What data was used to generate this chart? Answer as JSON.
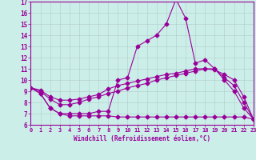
{
  "xlabel": "Windchill (Refroidissement éolien,°C)",
  "bg_color": "#cceee8",
  "line_color": "#990099",
  "grid_color": "#b0cccc",
  "axis_color": "#990099",
  "xlim": [
    0,
    23
  ],
  "ylim": [
    6,
    17
  ],
  "xticks": [
    0,
    1,
    2,
    3,
    4,
    5,
    6,
    7,
    8,
    9,
    10,
    11,
    12,
    13,
    14,
    15,
    16,
    17,
    18,
    19,
    20,
    21,
    22,
    23
  ],
  "yticks": [
    6,
    7,
    8,
    9,
    10,
    11,
    12,
    13,
    14,
    15,
    16,
    17
  ],
  "line1_x": [
    0,
    1,
    2,
    3,
    4,
    5,
    6,
    7,
    8,
    9,
    10,
    11,
    12,
    13,
    14,
    15,
    16,
    17,
    18,
    19,
    20,
    21,
    22,
    23
  ],
  "line1_y": [
    9.3,
    8.8,
    7.5,
    7.0,
    7.0,
    7.0,
    7.0,
    7.2,
    7.2,
    10.0,
    10.2,
    13.0,
    13.5,
    14.0,
    15.0,
    17.2,
    15.5,
    11.5,
    11.8,
    11.0,
    10.0,
    9.0,
    7.5,
    6.5
  ],
  "line2_x": [
    0,
    1,
    2,
    3,
    4,
    5,
    6,
    7,
    8,
    9,
    10,
    11,
    12,
    13,
    14,
    15,
    16,
    17,
    18,
    19,
    20,
    21,
    22,
    23
  ],
  "line2_y": [
    9.3,
    9.1,
    8.5,
    8.2,
    8.2,
    8.3,
    8.5,
    8.7,
    9.2,
    9.5,
    9.7,
    9.9,
    10.1,
    10.3,
    10.5,
    10.6,
    10.8,
    11.0,
    11.0,
    10.9,
    10.5,
    10.0,
    8.5,
    6.5
  ],
  "line3_x": [
    0,
    1,
    2,
    3,
    4,
    5,
    6,
    7,
    8,
    9,
    10,
    11,
    12,
    13,
    14,
    15,
    16,
    17,
    18,
    19,
    20,
    21,
    22,
    23
  ],
  "line3_y": [
    9.3,
    9.0,
    8.3,
    7.8,
    7.8,
    8.0,
    8.3,
    8.5,
    8.8,
    9.0,
    9.3,
    9.5,
    9.7,
    10.0,
    10.2,
    10.4,
    10.6,
    10.8,
    11.0,
    11.0,
    10.2,
    9.5,
    8.0,
    6.5
  ],
  "line4_x": [
    0,
    1,
    2,
    3,
    4,
    5,
    6,
    7,
    8,
    9,
    10,
    11,
    12,
    13,
    14,
    15,
    16,
    17,
    18,
    19,
    20,
    21,
    22,
    23
  ],
  "line4_y": [
    9.3,
    8.8,
    7.5,
    7.0,
    6.8,
    6.8,
    6.8,
    6.8,
    6.8,
    6.7,
    6.7,
    6.7,
    6.7,
    6.7,
    6.7,
    6.7,
    6.7,
    6.7,
    6.7,
    6.7,
    6.7,
    6.7,
    6.7,
    6.5
  ]
}
